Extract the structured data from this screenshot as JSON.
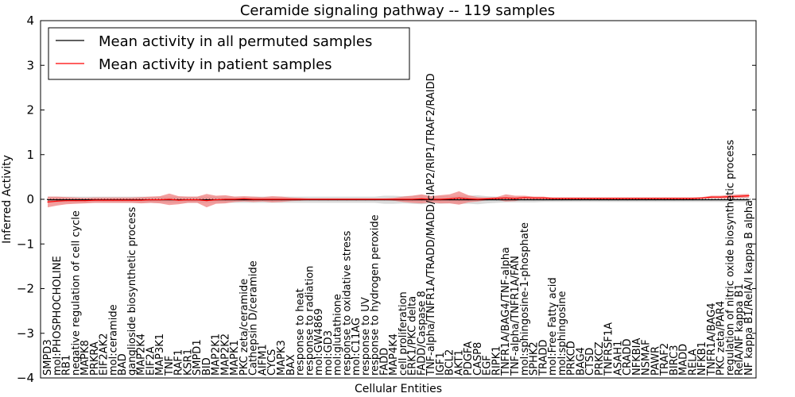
{
  "chart_data": {
    "type": "line",
    "title": "Ceramide signaling pathway -- 119 samples",
    "xlabel": "Cellular Entities",
    "ylabel": "Inferred Activity",
    "ylim": [
      -4,
      4
    ],
    "yticks": [
      "4",
      "3",
      "2",
      "1",
      "0",
      "−1",
      "−2",
      "−3",
      "−4"
    ],
    "ytick_values": [
      4,
      3,
      2,
      1,
      0,
      -1,
      -2,
      -3,
      -4
    ],
    "legend": {
      "position": "top-left",
      "entries": [
        {
          "label": "Mean activity in all permuted samples",
          "color": "#000000"
        },
        {
          "label": "Mean activity in patient samples",
          "color": "#ff0000"
        }
      ]
    },
    "categories": [
      "SMPD3",
      "mol:PHOSPHOCHOLINE",
      "RB1",
      "negative regulation of cell cycle",
      "MAPK8",
      "PRKRA",
      "EIF2AK2",
      "mol:ceramide",
      "BAD",
      "ganglioside biosynthetic process",
      "MAP2K4",
      "EIF2A",
      "MAP3K1",
      "TNF",
      "RAF1",
      "KSR1",
      "SMPD1",
      "BID",
      "MAP2K1",
      "MAP2K2",
      "MAPK1",
      "PKC zeta/ceramide",
      "Cathepsin D/ceramide",
      "AIFM1",
      "CYCS",
      "MAPK3",
      "BAX",
      "response to heat",
      "response to radiation",
      "mol:GW4869",
      "mol:GD3",
      "mol:glutathione",
      "response to oxidative stress",
      "mol:C11AG",
      "response to UV",
      "response to hydrogen peroxide",
      "FADD",
      "MAP4K4",
      "cell proliferation",
      "ERK1/PKC delta",
      "FADD/Caspase 8",
      "TNF-alpha/TNFR1A/TRADD/MADD/cIAP2/RIP1/TRAF2/RAIDD",
      "IGF1",
      "BCL2",
      "AKT1",
      "PDGFA",
      "CASP8",
      "EGF",
      "RIPK1",
      "TNFR1A/BAG4/TNF-alpha",
      "TNF-alpha/TNFR1A/FAN",
      "mol:sphingosine-1-phosphate",
      "SPHK2",
      "TRADD",
      "mol:Free Fatty acid",
      "mol:sphingosine",
      "PRKCD",
      "BAG4",
      "CTSD",
      "PRKCZ",
      "TNFRSF1A",
      "ASAH1",
      "CRADD",
      "NFKBIA",
      "NSMAF",
      "PAWR",
      "TRAF2",
      "BIRC3",
      "MADD",
      "RELA",
      "NFKB1",
      "TNFR1A/BAG4",
      "PKC zeta/PAR4",
      "regulation of nitric oxide biosynthetic process",
      "RelA/NF kappa B1",
      "NF kappa B1/RelA/I kappa B alpha"
    ],
    "series": [
      {
        "name": "Mean activity in all permuted samples",
        "color": "#000000",
        "values": [
          -0.01,
          -0.01,
          -0.01,
          -0.01,
          -0.01,
          -0.01,
          -0.01,
          -0.01,
          -0.01,
          -0.01,
          -0.01,
          -0.01,
          -0.01,
          -0.01,
          -0.01,
          -0.01,
          -0.01,
          -0.01,
          -0.01,
          -0.01,
          -0.01,
          -0.01,
          -0.01,
          -0.01,
          -0.01,
          -0.01,
          -0.01,
          -0.01,
          -0.01,
          -0.01,
          -0.01,
          -0.01,
          -0.01,
          -0.01,
          -0.01,
          -0.01,
          -0.01,
          -0.01,
          -0.01,
          -0.01,
          -0.01,
          -0.01,
          -0.01,
          -0.01,
          -0.01,
          -0.01,
          -0.01,
          -0.01,
          -0.01,
          -0.01,
          -0.01,
          -0.01,
          -0.01,
          -0.01,
          -0.01,
          -0.01,
          -0.01,
          -0.01,
          -0.01,
          -0.01,
          -0.01,
          -0.01,
          -0.01,
          -0.01,
          -0.01,
          -0.01,
          -0.01,
          -0.01,
          -0.01,
          -0.01,
          -0.01,
          -0.01,
          -0.01,
          -0.01,
          -0.01,
          -0.01
        ],
        "band": [
          0.07,
          0.07,
          0.07,
          0.07,
          0.07,
          0.07,
          0.07,
          0.07,
          0.07,
          0.07,
          0.07,
          0.07,
          0.07,
          0.07,
          0.07,
          0.07,
          0.07,
          0.07,
          0.07,
          0.07,
          0.07,
          0.07,
          0.07,
          0.07,
          0.07,
          0.07,
          0.07,
          0.07,
          0.07,
          0.07,
          0.07,
          0.07,
          0.07,
          0.07,
          0.07,
          0.07,
          0.09,
          0.09,
          0.08,
          0.09,
          0.1,
          0.08,
          0.09,
          0.08,
          0.09,
          0.09,
          0.1,
          0.08,
          0.07,
          0.06,
          0.06,
          0.06,
          0.06,
          0.05,
          0.05,
          0.05,
          0.05,
          0.05,
          0.05,
          0.05,
          0.05,
          0.05,
          0.05,
          0.05,
          0.05,
          0.05,
          0.05,
          0.05,
          0.05,
          0.05,
          0.05,
          0.05,
          0.05,
          0.05,
          0.05,
          0.05
        ]
      },
      {
        "name": "Mean activity in patient samples",
        "color": "#ff0000",
        "values": [
          -0.06,
          -0.04,
          -0.03,
          -0.03,
          -0.03,
          -0.02,
          -0.02,
          -0.02,
          -0.02,
          -0.02,
          -0.02,
          -0.01,
          -0.01,
          0.0,
          -0.02,
          -0.01,
          -0.01,
          -0.03,
          -0.01,
          0.0,
          0.0,
          0.01,
          0.0,
          0.0,
          0.0,
          0.0,
          0.0,
          0.0,
          0.0,
          0.0,
          0.0,
          0.0,
          0.0,
          0.0,
          0.0,
          0.0,
          0.0,
          0.0,
          0.0,
          0.0,
          0.01,
          0.0,
          0.0,
          0.01,
          0.03,
          0.01,
          0.0,
          0.01,
          0.02,
          0.03,
          0.02,
          0.04,
          0.03,
          0.03,
          0.02,
          0.02,
          0.02,
          0.02,
          0.02,
          0.02,
          0.02,
          0.02,
          0.02,
          0.02,
          0.02,
          0.02,
          0.02,
          0.02,
          0.02,
          0.02,
          0.03,
          0.05,
          0.05,
          0.06,
          0.07,
          0.08
        ],
        "band": [
          0.12,
          0.1,
          0.08,
          0.07,
          0.06,
          0.06,
          0.06,
          0.06,
          0.06,
          0.06,
          0.07,
          0.07,
          0.08,
          0.13,
          0.09,
          0.07,
          0.07,
          0.15,
          0.09,
          0.09,
          0.06,
          0.06,
          0.06,
          0.05,
          0.07,
          0.06,
          0.04,
          0.03,
          0.02,
          0.02,
          0.02,
          0.02,
          0.02,
          0.02,
          0.02,
          0.02,
          0.02,
          0.03,
          0.06,
          0.08,
          0.1,
          0.07,
          0.09,
          0.1,
          0.15,
          0.08,
          0.05,
          0.03,
          0.03,
          0.08,
          0.06,
          0.04,
          0.03,
          0.03,
          0.02,
          0.02,
          0.02,
          0.02,
          0.02,
          0.02,
          0.02,
          0.02,
          0.02,
          0.02,
          0.02,
          0.02,
          0.02,
          0.02,
          0.02,
          0.02,
          0.02,
          0.03,
          0.03,
          0.04,
          0.04,
          0.04
        ]
      }
    ]
  }
}
